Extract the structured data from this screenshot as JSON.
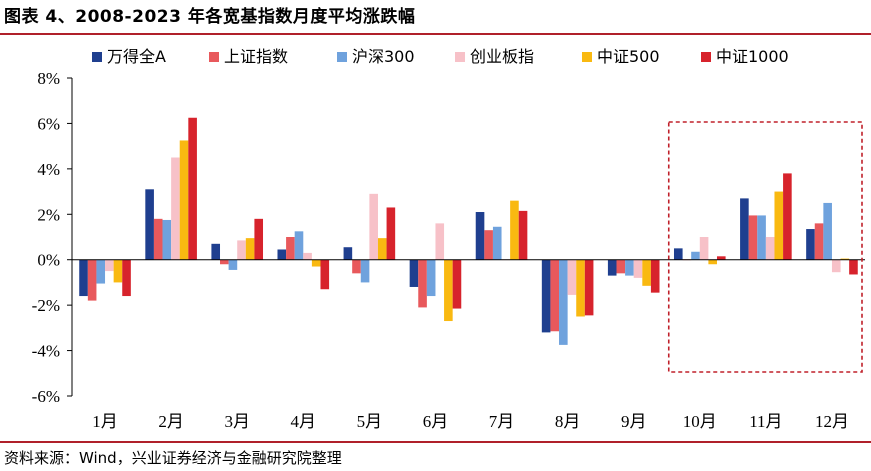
{
  "header": {
    "title": "图表 4、2008-2023 年各宽基指数月度平均涨跌幅"
  },
  "footer": {
    "source": "资料来源：Wind，兴业证券经济与金融研究院整理"
  },
  "chart_data": {
    "type": "bar",
    "title": "图表 4、2008-2023 年各宽基指数月度平均涨跌幅",
    "categories": [
      "1月",
      "2月",
      "3月",
      "4月",
      "5月",
      "6月",
      "7月",
      "8月",
      "9月",
      "10月",
      "11月",
      "12月"
    ],
    "series": [
      {
        "name": "万得全A",
        "color": "#1f3f8f",
        "values": [
          -1.6,
          3.1,
          0.7,
          0.45,
          0.55,
          -1.2,
          2.1,
          -3.2,
          -0.7,
          0.5,
          2.7,
          1.35
        ]
      },
      {
        "name": "上证指数",
        "color": "#e8595c",
        "values": [
          -1.8,
          1.8,
          -0.2,
          1.0,
          -0.6,
          -2.1,
          1.3,
          -3.15,
          -0.6,
          0.0,
          1.95,
          1.6
        ]
      },
      {
        "name": "沪深300",
        "color": "#6fa2dd",
        "values": [
          -1.05,
          1.75,
          -0.45,
          1.25,
          -1.0,
          -1.6,
          1.45,
          -3.75,
          -0.7,
          0.35,
          1.95,
          2.5
        ]
      },
      {
        "name": "创业板指",
        "color": "#f7c1c8",
        "values": [
          -0.5,
          4.5,
          0.85,
          0.3,
          2.9,
          1.6,
          0.0,
          -1.55,
          -0.8,
          1.0,
          1.0,
          -0.55
        ]
      },
      {
        "name": "中证500",
        "color": "#f9b911",
        "values": [
          -1.0,
          5.25,
          0.95,
          -0.3,
          0.95,
          -2.7,
          2.6,
          -2.5,
          -1.15,
          -0.2,
          3.0,
          0.05
        ]
      },
      {
        "name": "中证1000",
        "color": "#d7232c",
        "values": [
          -1.6,
          6.25,
          1.8,
          -1.3,
          2.3,
          -2.15,
          2.15,
          -2.45,
          -1.45,
          0.15,
          3.8,
          -0.65
        ]
      }
    ],
    "ylim": [
      -6,
      8
    ],
    "yticks": [
      -6,
      -4,
      -2,
      0,
      2,
      4,
      6,
      8
    ],
    "ytick_labels": [
      "-6%",
      "-4%",
      "-2%",
      "0%",
      "2%",
      "4%",
      "6%",
      "8%"
    ],
    "legend_position": "top",
    "highlight_box": {
      "from_category": "10月",
      "to_category": "12月",
      "color": "#c0202a",
      "style": "dashed"
    }
  }
}
